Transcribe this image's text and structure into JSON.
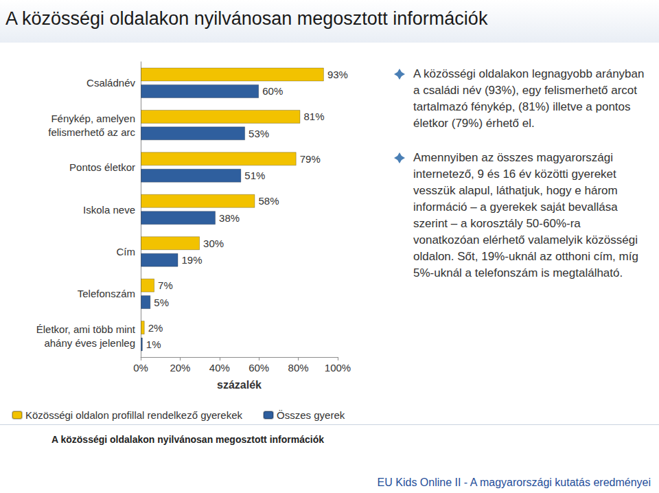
{
  "chart_data": {
    "type": "bar",
    "orientation": "horizontal",
    "title": "A közösségi oldalakon nyilvánosan megosztott információk",
    "x_label": "százalék",
    "categories": [
      "Családnév",
      "Fénykép, amelyen\nfelismerhető az arc",
      "Pontos életkor",
      "Iskola neve",
      "Cím",
      "Telefonszám",
      "Életkor, ami több mint\nahány éves jelenleg"
    ],
    "series": [
      {
        "name": "Közösségi oldalon profillal rendelkező gyerekek",
        "color": "#f2c200",
        "values": [
          93,
          81,
          79,
          58,
          30,
          7,
          2
        ],
        "value_labels": [
          "93%",
          "81%",
          "79%",
          "58%",
          "30%",
          "7%",
          "2%"
        ]
      },
      {
        "name": "Összes gyerek",
        "color": "#2f5f9e",
        "values": [
          60,
          53,
          51,
          38,
          19,
          5,
          1
        ],
        "value_labels": [
          "60%",
          "53%",
          "51%",
          "38%",
          "19%",
          "5%",
          "1%"
        ]
      }
    ],
    "xlim": [
      0,
      100
    ],
    "xticks": [
      {
        "value": 0,
        "label": "0%"
      },
      {
        "value": 20,
        "label": "20%"
      },
      {
        "value": 40,
        "label": "40%"
      },
      {
        "value": 60,
        "label": "60%"
      },
      {
        "value": 80,
        "label": "80%"
      },
      {
        "value": 100,
        "label": "100%"
      }
    ],
    "grid": false,
    "legend": "bottom",
    "data_labels": true,
    "annotations": [
      "A közösségi oldalakon legnagyobb arányban a családi név (93%), egy felismerhető arcot tartalmazó fénykép, (81%) illetve a pontos életkor (79%) érhető el.",
      "Amennyiben az összes magyarországi internetező, 9 és 16 év közötti gyereket vesszük alapul, láthatjuk, hogy e három információ – a gyerekek saját bevallása szerint – a korosztály 50-60%-ra vonatkozóan elérhető valamelyik közösségi oldalon. Sőt, 19%-uknál az otthoni cím, míg 5%-uknál a telefonszám is megtalálható."
    ],
    "caption": "A közösségi oldalakon nyilvánosan megosztott információk",
    "footer": "EU Kids Online II - A magyarországi kutatás eredményei"
  }
}
